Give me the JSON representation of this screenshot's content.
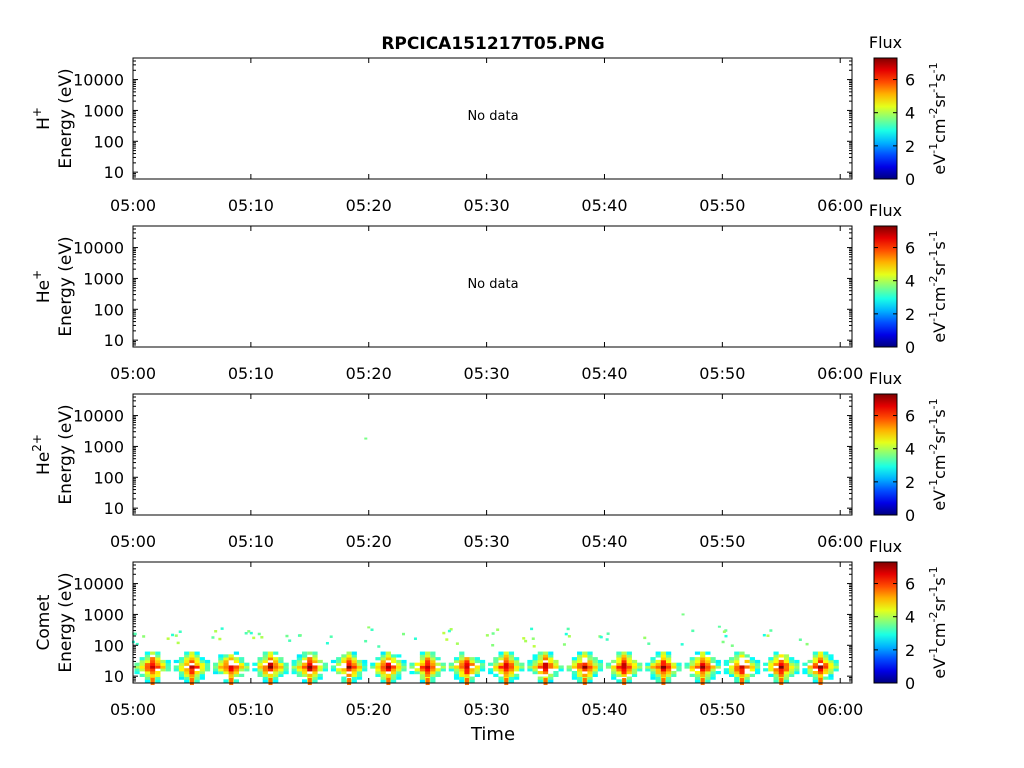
{
  "title": "RPCICA151217T05.PNG",
  "colors": {
    "axis": "#000000",
    "background": "#ffffff"
  },
  "chart_data": {
    "type": "heatmap",
    "title": "RPCICA151217T05.PNG",
    "xlabel": "Time",
    "x_range": [
      "05:00",
      "06:01"
    ],
    "x_ticks": [
      "05:00",
      "05:10",
      "05:20",
      "05:30",
      "05:40",
      "05:50",
      "06:00"
    ],
    "y_scale": "log",
    "ylim": [
      6,
      50000
    ],
    "y_ticks": [
      "10",
      "100",
      "1000",
      "10000"
    ],
    "colorbar": {
      "label": "Flux",
      "unit_base": "eV",
      "ticks": [
        "0",
        "2",
        "4",
        "6"
      ],
      "range": [
        0,
        7.3
      ],
      "colormap": "jet"
    },
    "panels": [
      {
        "species_base": "H",
        "species_sup": "+",
        "ylabel": "Energy (eV)",
        "note": "No data",
        "cells": []
      },
      {
        "species_base": "He",
        "species_sup": "+",
        "ylabel": "Energy (eV)",
        "note": "No data",
        "cells": []
      },
      {
        "species_base": "He",
        "species_sup": "2+",
        "ylabel": "Energy (eV)",
        "note": "",
        "cells": [
          {
            "t": "05:19:45",
            "e": 1800,
            "flux": 3.6
          }
        ]
      },
      {
        "species_base": "Comet",
        "species_sup": "",
        "ylabel": "Energy (eV)",
        "note": "",
        "burst_times": [
          "05:01:40",
          "05:05:00",
          "05:08:20",
          "05:11:40",
          "05:15:00",
          "05:18:20",
          "05:21:40",
          "05:25:00",
          "05:28:20",
          "05:31:40",
          "05:35:00",
          "05:38:20",
          "05:41:40",
          "05:45:00",
          "05:48:20",
          "05:51:40",
          "05:55:00",
          "05:58:20"
        ],
        "burst_peak_energy_ev": 20,
        "burst_peak_flux": 7.0,
        "burst_energy_span_ev": [
          7,
          60
        ],
        "tail_energy_ev": [
          100,
          400
        ],
        "tail_flux": 3.5,
        "isolated_points": [
          {
            "t": "05:20:00",
            "e": 380,
            "flux": 3.8
          },
          {
            "t": "05:46:40",
            "e": 1000,
            "flux": 3.6
          },
          {
            "t": "05:49:45",
            "e": 400,
            "flux": 3.4
          }
        ]
      }
    ]
  }
}
